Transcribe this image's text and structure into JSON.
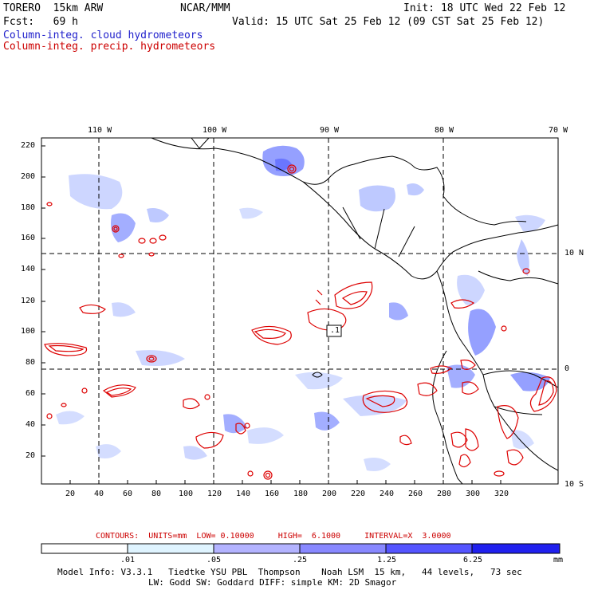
{
  "header": {
    "model": "TORERO  15km ARW",
    "org": "NCAR/MMM",
    "init": "Init: 18 UTC Wed 22 Feb 12",
    "fcst": "Fcst:   69 h",
    "valid": "Valid: 15 UTC Sat 25 Feb 12 (09 CST Sat 25 Feb 12)",
    "field1": "Column-integ. cloud hydrometeors",
    "field2": "Column-integ. precip. hydrometeors"
  },
  "axes": {
    "top_lon": [
      "110 W",
      "100 W",
      "90 W",
      "80 W",
      "70 W"
    ],
    "right_lat": [
      "10 N",
      "0",
      "10 S"
    ],
    "y_ticks": [
      "220",
      "200",
      "180",
      "160",
      "140",
      "120",
      "100",
      "80",
      "60",
      "40",
      "20"
    ],
    "x_ticks": [
      "20",
      "40",
      "60",
      "80",
      "100",
      "120",
      "140",
      "160",
      "180",
      "200",
      "220",
      "240",
      "260",
      "280",
      "300",
      "320"
    ]
  },
  "annotations": {
    "box_label": ".1"
  },
  "contours": {
    "text": "CONTOURS:  UNITS=mm  LOW= 0.10000     HIGH=  6.1000     INTERVAL=X  3.0000",
    "units": "mm",
    "low": 0.1,
    "high": 6.1,
    "interval": "X 3.0000"
  },
  "colorbar": {
    "labels": [
      ".01",
      ".05",
      ".25",
      "1.25",
      "6.25"
    ],
    "unit": "mm",
    "colors": [
      "#ffffff",
      "#dff4ff",
      "#b3b3ff",
      "#8888ff",
      "#5555ff",
      "#2020ee"
    ]
  },
  "footer": {
    "line1": "Model Info: V3.3.1   Tiedtke YSU PBL  Thompson    Noah LSM  15 km,   44 levels,   73 sec",
    "line2": "LW: Godd SW: Goddard DIFF: simple KM: 2D Smagor"
  }
}
